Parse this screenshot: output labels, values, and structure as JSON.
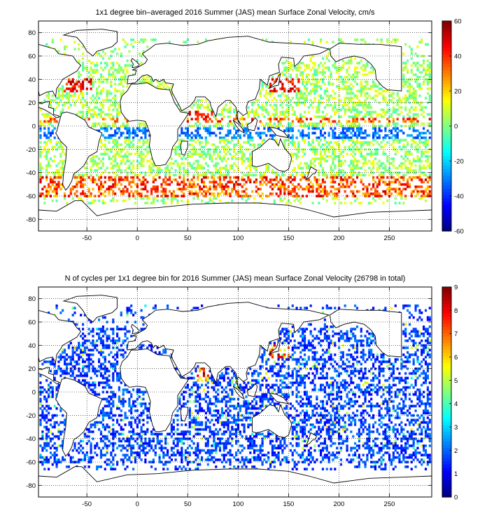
{
  "panels": [
    {
      "title": "1x1 degree bin–averaged 2016 Summer (JAS) mean Surface Zonal Velocity, cm/s",
      "chart_data": {
        "type": "heatmap",
        "title": "1x1 degree bin–averaged 2016 Summer (JAS) mean Surface Zonal Velocity, cm/s",
        "xlabel": "",
        "ylabel": "",
        "xlim": [
          -98,
          292
        ],
        "ylim": [
          -90,
          90
        ],
        "x_ticks": [
          -50,
          0,
          50,
          100,
          150,
          200,
          250
        ],
        "y_ticks": [
          80,
          60,
          40,
          20,
          0,
          -20,
          -40,
          -60,
          -80
        ],
        "grid": true,
        "colorbar": {
          "colormap": "jet",
          "range": [
            -60,
            60
          ],
          "ticks": [
            60,
            40,
            20,
            0,
            -20,
            -40,
            -60
          ]
        },
        "value_character": {
          "equatorial_band_0_to_10S": -25,
          "north_equatorial_countercurrent_5N": 30,
          "antarctic_circumpolar_current_45S_to_60S": 30,
          "subtropical_gyres": 5,
          "kuroshio_gulf_stream": 40,
          "somali_current_10N": 45
        }
      }
    },
    {
      "title": "N of cycles per 1x1 degree bin for 2016 Summer (JAS) mean Surface Zonal Velocity (26798 in total)",
      "chart_data": {
        "type": "heatmap",
        "title": "N of cycles per 1x1 degree bin for 2016 Summer (JAS) mean Surface Zonal Velocity (26798 in total)",
        "xlabel": "",
        "ylabel": "",
        "xlim": [
          -98,
          292
        ],
        "ylim": [
          -90,
          90
        ],
        "x_ticks": [
          -50,
          0,
          50,
          100,
          150,
          200,
          250
        ],
        "y_ticks": [
          80,
          60,
          40,
          20,
          0,
          -20,
          -40,
          -60,
          -80
        ],
        "grid": true,
        "total_cycles": 26798,
        "colorbar": {
          "colormap": "jet",
          "range": [
            0,
            9
          ],
          "ticks": [
            9,
            8,
            7,
            6,
            5,
            4,
            3,
            2,
            1,
            0
          ]
        },
        "value_character": {
          "typical_bin": 1.5,
          "kuroshio_gulf_stream": 8,
          "arabian_sea": 8
        }
      }
    }
  ]
}
